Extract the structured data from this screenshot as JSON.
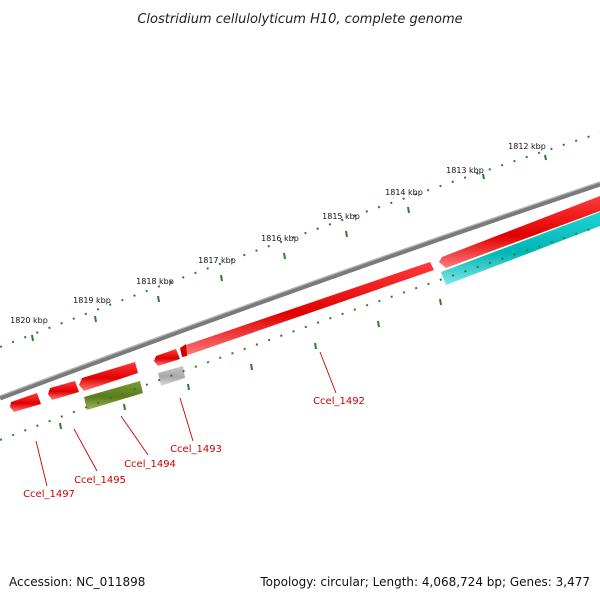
{
  "title": "Clostridium cellulolyticum H10, complete genome",
  "footer": {
    "accession": "Accession: NC_011898",
    "summary": "Topology: circular; Length: 4,068,724 bp; Genes: 3,477"
  },
  "scale_labels": [
    "1812 kbp",
    "1813 kbp",
    "1814 kbp",
    "1815 kbp",
    "1816 kbp",
    "1817 kbp",
    "1818 kbp",
    "1819 kbp",
    "1820 kbp"
  ],
  "genes": [
    {
      "label": "Ccel_1492",
      "color": "#e60000"
    },
    {
      "label": "Ccel_1493",
      "color": "#b0b0b0"
    },
    {
      "label": "Ccel_1494",
      "color": "#6b8e23"
    },
    {
      "label": "Ccel_1495",
      "color": "#e60000"
    },
    {
      "label": "Ccel_1497",
      "color": "#e60000"
    }
  ],
  "colors": {
    "backbone": "#808080",
    "cds_forward": "#e60000",
    "cds_reverse": "#00cccc",
    "ticks": "#2e7d2e",
    "label_lines": "#cc0000"
  }
}
